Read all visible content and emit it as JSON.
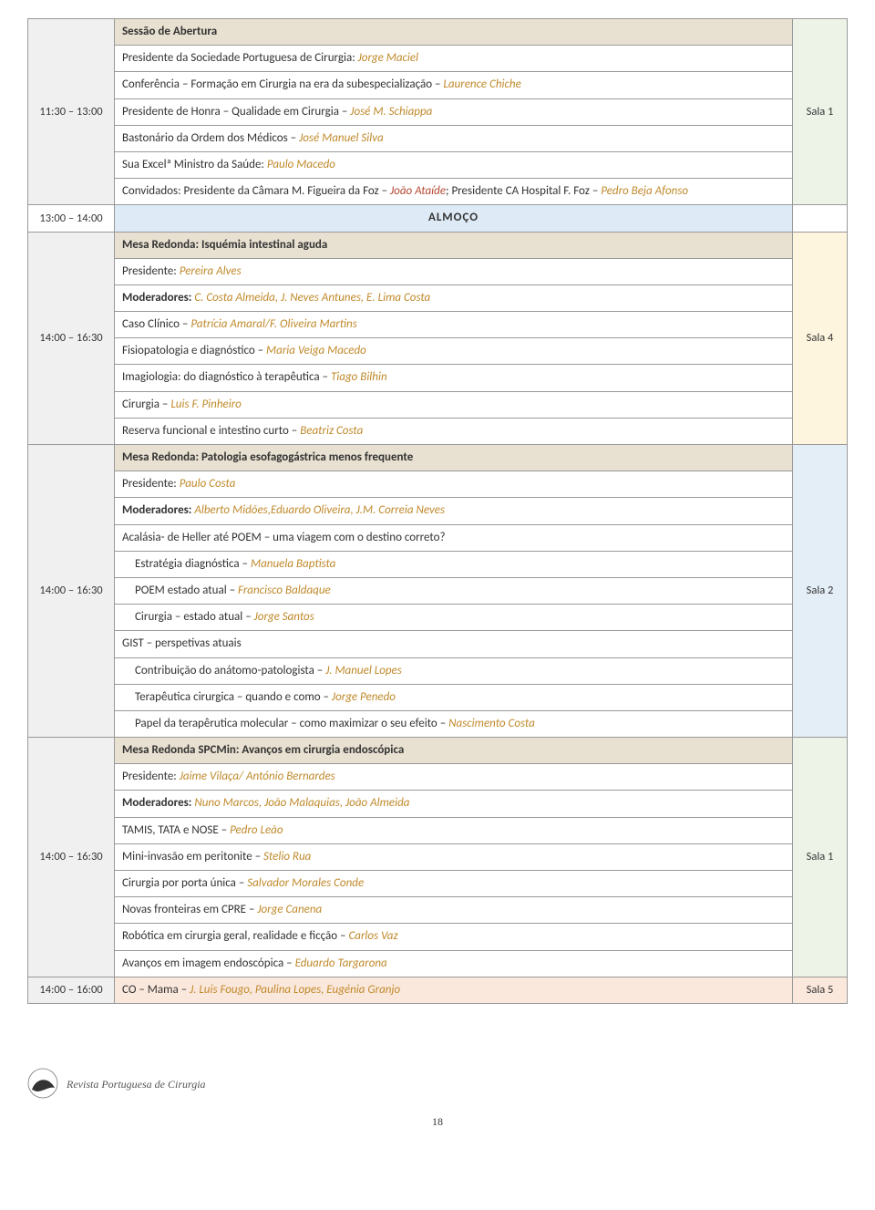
{
  "footer": {
    "journal": "Revista Portuguesa de Cirurgia",
    "page": "18"
  },
  "colors": {
    "accent_name": "#c08a2c",
    "accent_name_red": "#b54832",
    "header_bg": "#e8e0d0",
    "lunch_bg": "#deeaf6",
    "border": "#999999"
  },
  "room_colors": {
    "sala1": "#edf4e7",
    "sala4": "#fdf5dd",
    "sala2": "#e4eef7",
    "sala5": "#fbe8dd",
    "time_default": "#f0f0f0"
  },
  "blocks": [
    {
      "id": "b1",
      "time": "11:30 – 13:00",
      "time_bg": "bg-pale-grey",
      "room": "Sala 1",
      "room_bg": "bg-pale-green",
      "header": "Sessão de Abertura",
      "rows": [
        {
          "plain": "Presidente da Sociedade Portuguesa de Cirurgia: ",
          "name": "Jorge Maciel"
        },
        {
          "plain": "Conferência – Formação em Cirurgia na era da subespecialização – ",
          "name": "Laurence Chiche"
        },
        {
          "plain": "Presidente de Honra – Qualidade em Cirurgia – ",
          "name": "José M. Schiappa"
        },
        {
          "plain": "Bastonário da Ordem dos Médicos – ",
          "name": "José Manuel Silva"
        },
        {
          "plain": "Sua Excelª Ministro da Saúde: ",
          "name": "Paulo Macedo"
        },
        {
          "plain": "Convidados: Presidente da Câmara M. Figueira da Foz – ",
          "name_r": "João Ataíde",
          "tail": "; Presidente CA Hospital F. Foz – ",
          "name2": "Pedro Beja Afonso"
        }
      ]
    },
    {
      "id": "lunch",
      "time": "13:00 – 14:00",
      "label": "ALMOÇO"
    },
    {
      "id": "b2",
      "time": "14:00 – 16:30",
      "time_bg": "bg-pale-grey",
      "room": "Sala 4",
      "room_bg": "bg-pale-yel",
      "header": "Mesa Redonda: Isquémia intestinal aguda",
      "rows": [
        {
          "plain": "Presidente: ",
          "name": "Pereira Alves"
        },
        {
          "bold": "Moderadores: ",
          "name": "C. Costa Almeida, J. Neves Antunes, E. Lima Costa"
        },
        {
          "plain": "Caso Clínico – ",
          "name": "Patrícia Amaral/F. Oliveira Martins"
        },
        {
          "plain": "Fisiopatologia e diagnóstico – ",
          "name": "Maria Veiga Macedo"
        },
        {
          "plain": "Imagiologia: do diagnóstico à terapêutica – ",
          "name": "Tiago Bilhin"
        },
        {
          "plain": "Cirurgia – ",
          "name": "Luis F. Pinheiro"
        },
        {
          "plain": "Reserva funcional e intestino curto – ",
          "name": "Beatriz Costa"
        }
      ]
    },
    {
      "id": "b3",
      "time": "14:00 – 16:30",
      "time_bg": "bg-pale-grey",
      "room": "Sala 2",
      "room_bg": "bg-pale-blue",
      "header": "Mesa Redonda: Patologia esofagogástrica menos frequente",
      "rows": [
        {
          "plain": "Presidente: ",
          "name": "Paulo Costa"
        },
        {
          "bold": "Moderadores: ",
          "name": "Alberto Midões,Eduardo Oliveira, J.M. Correia Neves"
        },
        {
          "plain": "Acalásia- de Heller até POEM – uma viagem com o destino correto?"
        },
        {
          "indent": true,
          "plain": "Estratégia diagnóstica – ",
          "name": "Manuela Baptista"
        },
        {
          "indent": true,
          "plain": "POEM estado atual – ",
          "name": "Francisco Baldaque"
        },
        {
          "indent": true,
          "plain": "Cirurgia – estado atual – ",
          "name": "Jorge Santos"
        },
        {
          "plain": "GIST – perspetivas atuais"
        },
        {
          "indent": true,
          "plain": "Contribuição do anátomo-patologista – ",
          "name": "J. Manuel Lopes"
        },
        {
          "indent": true,
          "plain": "Terapêutica cirurgica – quando e como – ",
          "name": "Jorge Penedo"
        },
        {
          "indent": true,
          "plain": "Papel da terapêrutica molecular – como maximizar o seu efeito – ",
          "name": "Nascimento Costa"
        }
      ]
    },
    {
      "id": "b4",
      "time": "14:00 – 16:30",
      "time_bg": "bg-pale-grey",
      "room": "Sala 1",
      "room_bg": "bg-pale-green",
      "header": "Mesa Redonda SPCMin: Avanços em cirurgia endoscópica",
      "rows": [
        {
          "plain": "Presidente: ",
          "name": "Jaime Vilaça/ António Bernardes"
        },
        {
          "bold": "Moderadores: ",
          "name": "Nuno Marcos, João Malaquias, João Almeida"
        },
        {
          "plain": "TAMIS, TATA e NOSE – ",
          "name": "Pedro Leão"
        },
        {
          "plain": "Mini-invasão em peritonite – ",
          "name": "Stelio Rua"
        },
        {
          "plain": "Cirurgia por porta única – ",
          "name": "Salvador Morales Conde"
        },
        {
          "plain": "Novas fronteiras em CPRE – ",
          "name": "Jorge Canena"
        },
        {
          "plain": "Robótica em cirurgia geral, realidade e ficção – ",
          "name": "Carlos Vaz"
        },
        {
          "plain": "Avanços em imagem endoscópica – ",
          "name": "Eduardo Targarona"
        }
      ]
    },
    {
      "id": "b5",
      "time": "14:00 – 16:00",
      "time_bg": "bg-pale-grey",
      "room": "Sala 5",
      "room_bg": "bg-pale-peach",
      "single_row": {
        "plain": "CO – Mama – ",
        "name": "J. Luis Fougo, Paulina Lopes, Eugénia Granjo"
      }
    }
  ]
}
